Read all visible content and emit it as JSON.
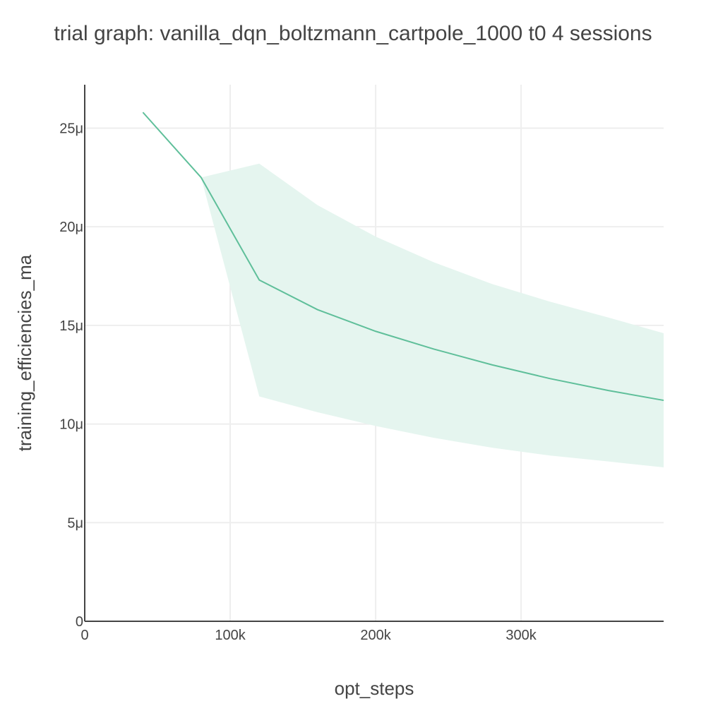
{
  "title": "trial graph: vanilla_dqn_boltzmann_cartpole_1000 t0 4 sessions",
  "chart_data": {
    "type": "line",
    "title": "trial graph: vanilla_dqn_boltzmann_cartpole_1000 t0 4 sessions",
    "xlabel": "opt_steps",
    "ylabel": "training_efficiencies_ma",
    "xlim": [
      0,
      398000
    ],
    "ylim": [
      0,
      2.72e-05
    ],
    "x_ticks": [
      {
        "value": 0,
        "label": "0"
      },
      {
        "value": 100000,
        "label": "100k"
      },
      {
        "value": 200000,
        "label": "200k"
      },
      {
        "value": 300000,
        "label": "300k"
      }
    ],
    "y_ticks": [
      {
        "value": 0,
        "label": "0"
      },
      {
        "value": 5e-06,
        "label": "5μ"
      },
      {
        "value": 1e-05,
        "label": "10μ"
      },
      {
        "value": 1.5e-05,
        "label": "15μ"
      },
      {
        "value": 2e-05,
        "label": "20μ"
      },
      {
        "value": 2.5e-05,
        "label": "25μ"
      }
    ],
    "grid": true,
    "colors": {
      "line": "#5fbf9a",
      "band": "#e5f5ef",
      "grid": "#eeeeee",
      "axis": "#444444"
    },
    "series": [
      {
        "x": [
          40000,
          80000,
          120000,
          160000,
          200000,
          240000,
          280000,
          320000,
          360000,
          398000
        ],
        "y": [
          2.58e-05,
          2.25e-05,
          1.73e-05,
          1.58e-05,
          1.47e-05,
          1.38e-05,
          1.3e-05,
          1.23e-05,
          1.17e-05,
          1.12e-05
        ],
        "upper": [
          null,
          2.25e-05,
          2.32e-05,
          2.11e-05,
          1.95e-05,
          1.82e-05,
          1.71e-05,
          1.62e-05,
          1.54e-05,
          1.46e-05
        ],
        "lower": [
          null,
          2.25e-05,
          1.14e-05,
          1.06e-05,
          9.9e-06,
          9.3e-06,
          8.8e-06,
          8.4e-06,
          8.1e-06,
          7.8e-06
        ]
      }
    ]
  }
}
